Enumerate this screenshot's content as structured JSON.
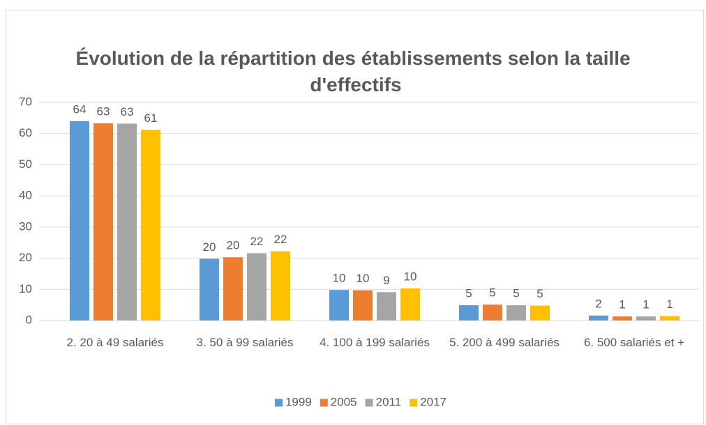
{
  "chart_data": {
    "type": "bar",
    "title": "Évolution de la répartition des établissements selon la taille d'effectifs",
    "categories": [
      "2. 20 à 49 salariés",
      "3. 50 à 99 salariés",
      "4. 100 à 199 salariés",
      "5. 200 à 499 salariés",
      "6. 500 salariés et +"
    ],
    "series": [
      {
        "name": "1999",
        "color": "#5b9bd5",
        "values": [
          64.0,
          19.8,
          9.8,
          4.9,
          1.6
        ],
        "value_labels": [
          "64",
          "20",
          "10",
          "5",
          "2"
        ]
      },
      {
        "name": "2005",
        "color": "#ed7d31",
        "values": [
          63.3,
          20.3,
          9.7,
          5.1,
          1.3
        ],
        "value_labels": [
          "63",
          "20",
          "10",
          "5",
          "1"
        ]
      },
      {
        "name": "2011",
        "color": "#a5a5a5",
        "values": [
          63.2,
          21.6,
          9.1,
          4.9,
          1.3
        ],
        "value_labels": [
          "63",
          "22",
          "9",
          "5",
          "1"
        ]
      },
      {
        "name": "2017",
        "color": "#ffc000",
        "values": [
          61.2,
          22.2,
          10.3,
          4.8,
          1.4
        ],
        "value_labels": [
          "61",
          "22",
          "10",
          "5",
          "1"
        ]
      }
    ],
    "ylim": [
      0,
      70
    ],
    "yticks": [
      0,
      10,
      20,
      30,
      40,
      50,
      60,
      70
    ],
    "grid": true,
    "legend": "bottom"
  }
}
